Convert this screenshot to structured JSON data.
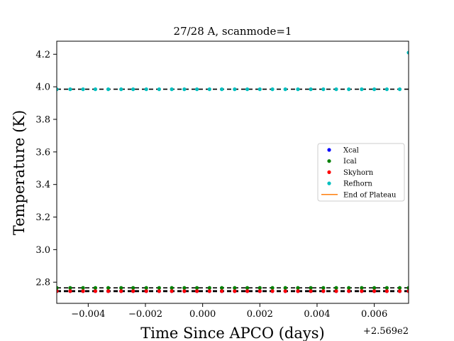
{
  "chart_data": {
    "type": "scatter",
    "title": "27/28 A, scanmode=1",
    "xlabel": "Time Since APCO (days)",
    "ylabel": "Temperature (K)",
    "x_offset_label": "+2.569e2",
    "xlim": [
      -0.0051,
      0.0072
    ],
    "ylim": [
      2.67,
      4.28
    ],
    "xticks": [
      -0.004,
      -0.002,
      0.0,
      0.002,
      0.004,
      0.006
    ],
    "xtick_labels": [
      "−0.004",
      "−0.002",
      "0.000",
      "0.002",
      "0.004",
      "0.006"
    ],
    "yticks": [
      2.8,
      3.0,
      3.2,
      3.4,
      3.6,
      3.8,
      4.0,
      4.2
    ],
    "ytick_labels": [
      "2.8",
      "3.0",
      "3.2",
      "3.4",
      "3.6",
      "3.8",
      "4.0",
      "4.2"
    ],
    "legend_placement": "center-right",
    "grid": false,
    "x": [
      -0.0051,
      -0.00463,
      -0.00418,
      -0.00375,
      -0.0033,
      -0.00285,
      -0.00243,
      -0.00197,
      -0.00152,
      -0.00108,
      -0.00064,
      -0.0002,
      0.00024,
      0.00067,
      0.00112,
      0.00156,
      0.002,
      0.00244,
      0.00289,
      0.00333,
      0.00378,
      0.00422,
      0.00467,
      0.00511,
      0.00556,
      0.006,
      0.00644,
      0.00689,
      0.0072
    ],
    "series": [
      {
        "name": "Xcal",
        "color": "#0000ff",
        "y_const": 2.745,
        "last_y": 2.745
      },
      {
        "name": "Ical",
        "color": "#008000",
        "y_const": 2.765,
        "last_y": 2.765
      },
      {
        "name": "Skyhorn",
        "color": "#ff0000",
        "y_const": 2.745,
        "last_y": 2.745
      },
      {
        "name": "Refhorn",
        "color": "#00bfbf",
        "y_const": 3.985,
        "last_y": 4.21
      }
    ],
    "reference_lines": [
      3.985,
      2.765,
      2.748,
      2.742
    ],
    "reference_line_color": "#000000",
    "end_of_plateau": {
      "name": "End of Plateau",
      "color": "#ff7f0e"
    }
  }
}
